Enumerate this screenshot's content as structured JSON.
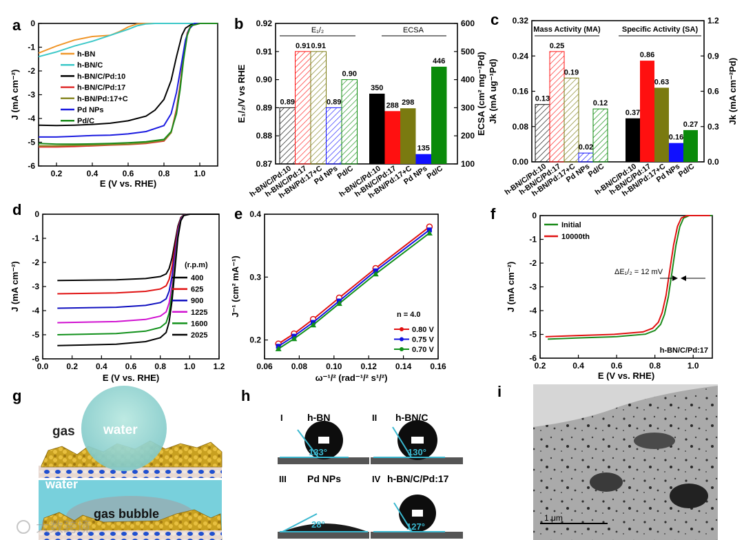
{
  "panel_labels": {
    "a": "a",
    "b": "b",
    "c": "c",
    "d": "d",
    "e": "e",
    "f": "f",
    "g": "g",
    "h": "h",
    "i": "i"
  },
  "chart_data": [
    {
      "id": "a",
      "type": "line",
      "xlabel": "E (V vs. RHE)",
      "ylabel": "J (mA cm⁻²)",
      "xlim": [
        0.1,
        1.1
      ],
      "ylim": [
        -6,
        0
      ],
      "xticks": [
        "0.2",
        "0.4",
        "0.6",
        "0.8",
        "1.0"
      ],
      "yticks": [
        "0",
        "-1",
        "-2",
        "-3",
        "-4",
        "-5",
        "-6"
      ],
      "series": [
        {
          "name": "h-BN",
          "color": "#f0962a",
          "x": [
            0.1,
            0.2,
            0.3,
            0.4,
            0.5,
            0.55,
            0.6,
            0.65,
            0.7,
            0.8,
            1.1
          ],
          "y": [
            -1.25,
            -0.95,
            -0.7,
            -0.55,
            -0.5,
            -0.35,
            -0.15,
            -0.02,
            0,
            0,
            0
          ]
        },
        {
          "name": "h-BN/C",
          "color": "#3cc8c8",
          "x": [
            0.1,
            0.2,
            0.3,
            0.4,
            0.5,
            0.6,
            0.65,
            0.7,
            0.75,
            0.8,
            1.1
          ],
          "y": [
            -1.4,
            -1.2,
            -0.95,
            -0.75,
            -0.5,
            -0.25,
            -0.1,
            -0.02,
            0,
            0,
            0
          ]
        },
        {
          "name": "h-BN/C/Pd:10",
          "color": "#000000",
          "x": [
            0.1,
            0.2,
            0.3,
            0.4,
            0.5,
            0.6,
            0.7,
            0.75,
            0.8,
            0.84,
            0.87,
            0.9,
            0.92,
            0.95,
            1.0,
            1.1
          ],
          "y": [
            -4.28,
            -4.3,
            -4.28,
            -4.25,
            -4.2,
            -4.1,
            -3.9,
            -3.65,
            -3.2,
            -2.4,
            -1.4,
            -0.5,
            -0.2,
            -0.05,
            0,
            0
          ]
        },
        {
          "name": "h-BN/C/Pd:17",
          "color": "#e03030",
          "x": [
            0.1,
            0.2,
            0.3,
            0.4,
            0.5,
            0.6,
            0.7,
            0.8,
            0.84,
            0.87,
            0.89,
            0.91,
            0.93,
            0.95,
            1.0,
            1.1
          ],
          "y": [
            -5.2,
            -5.2,
            -5.18,
            -5.15,
            -5.12,
            -5.1,
            -5.05,
            -4.95,
            -4.6,
            -3.6,
            -2.6,
            -1.3,
            -0.4,
            -0.1,
            0,
            0
          ]
        },
        {
          "name": "h-BN/Pd:17+C",
          "color": "#8a8a28",
          "x": [
            0.1,
            0.2,
            0.3,
            0.4,
            0.5,
            0.6,
            0.7,
            0.8,
            0.84,
            0.87,
            0.89,
            0.91,
            0.93,
            0.95,
            1.0,
            1.1
          ],
          "y": [
            -5.15,
            -5.15,
            -5.13,
            -5.12,
            -5.1,
            -5.08,
            -5.02,
            -4.92,
            -4.6,
            -3.7,
            -2.7,
            -1.4,
            -0.5,
            -0.1,
            0,
            0
          ]
        },
        {
          "name": "Pd NPs",
          "color": "#1a1ae0",
          "x": [
            0.1,
            0.2,
            0.3,
            0.4,
            0.5,
            0.6,
            0.7,
            0.8,
            0.84,
            0.87,
            0.9,
            0.92,
            0.94,
            0.97,
            1.1
          ],
          "y": [
            -4.78,
            -4.78,
            -4.75,
            -4.72,
            -4.7,
            -4.65,
            -4.55,
            -4.3,
            -3.8,
            -2.9,
            -1.6,
            -0.7,
            -0.25,
            0,
            0
          ]
        },
        {
          "name": "Pd/C",
          "color": "#1a8a1a",
          "x": [
            0.1,
            0.2,
            0.3,
            0.4,
            0.5,
            0.6,
            0.7,
            0.8,
            0.84,
            0.87,
            0.89,
            0.91,
            0.93,
            0.95,
            1.0,
            1.1
          ],
          "y": [
            -5.05,
            -5.08,
            -5.08,
            -5.07,
            -5.05,
            -5.02,
            -4.98,
            -4.88,
            -4.55,
            -3.8,
            -2.8,
            -1.5,
            -0.5,
            -0.1,
            0,
            0
          ]
        }
      ]
    },
    {
      "id": "b",
      "type": "bar",
      "ylabel_left": "E₁/₂/V vs RHE",
      "ylabel_right": "ECSA (cm² mg⁻¹Pd)",
      "ylim_left": [
        0.87,
        0.92
      ],
      "yticks_left": [
        "0.87",
        "0.88",
        "0.89",
        "0.90",
        "0.91",
        "0.92"
      ],
      "ylim_right": [
        100,
        600
      ],
      "yticks_right": [
        "100",
        "200",
        "300",
        "400",
        "500",
        "600"
      ],
      "header_left": "E₁/₂",
      "header_right": "ECSA",
      "categories": [
        "h-BN/C/Pd:10",
        "h-BN/C/Pd:17",
        "h-BN/Pd:17+C",
        "Pd NPs",
        "Pd/C"
      ],
      "colors": [
        "#000000",
        "#ff1010",
        "#7a7a10",
        "#1010ff",
        "#0a8a0a"
      ],
      "e_half": [
        0.89,
        0.91,
        0.91,
        0.89,
        0.9
      ],
      "e_half_labels": [
        "0.89",
        "0.91",
        "0.91",
        "0.89",
        "0.90"
      ],
      "ecsa": [
        350,
        288,
        298,
        135,
        446
      ],
      "ecsa_labels": [
        "350",
        "288",
        "298",
        "135",
        "446"
      ]
    },
    {
      "id": "c",
      "type": "bar",
      "ylabel_left": "Jk (mA ug⁻¹Pd)",
      "ylabel_right": "Jk (mA cm⁻²Pd)",
      "ylim_left": [
        0,
        0.32
      ],
      "yticks_left": [
        "0.00",
        "0.08",
        "0.16",
        "0.24",
        "0.32"
      ],
      "ylim_right": [
        0,
        1.2
      ],
      "yticks_right": [
        "0.0",
        "0.3",
        "0.6",
        "0.9",
        "1.2"
      ],
      "header_left": "Mass Activity (MA)",
      "header_right": "Specific Activity (SA)",
      "categories": [
        "h-BN/C/Pd:10",
        "h-BN/C/Pd:17",
        "h-BN/Pd:17+C",
        "Pd NPs",
        "Pd/C"
      ],
      "colors": [
        "#000000",
        "#ff1010",
        "#7a7a10",
        "#1010ff",
        "#0a8a0a"
      ],
      "ma": [
        0.13,
        0.25,
        0.19,
        0.02,
        0.12
      ],
      "ma_labels": [
        "0.13",
        "0.25",
        "0.19",
        "0.02",
        "0.12"
      ],
      "sa": [
        0.37,
        0.86,
        0.63,
        0.16,
        0.27
      ],
      "sa_labels": [
        "0.37",
        "0.86",
        "0.63",
        "0.16",
        "0.27"
      ]
    },
    {
      "id": "d",
      "type": "line",
      "xlabel": "E (V vs. RHE)",
      "ylabel": "J (mA cm⁻²)",
      "xlim": [
        0,
        1.2
      ],
      "ylim": [
        -6,
        0
      ],
      "xticks": [
        "0.0",
        "0.2",
        "0.4",
        "0.6",
        "0.8",
        "1.0",
        "1.2"
      ],
      "yticks": [
        "0",
        "-1",
        "-2",
        "-3",
        "-4",
        "-5",
        "-6"
      ],
      "legend_title": "(r.p.m)",
      "series": [
        {
          "name": "400",
          "color": "#000000",
          "plateau": -2.75
        },
        {
          "name": "625",
          "color": "#e01010",
          "plateau": -3.3
        },
        {
          "name": "900",
          "color": "#1010c0",
          "plateau": -3.9
        },
        {
          "name": "1225",
          "color": "#d010d0",
          "plateau": -4.5
        },
        {
          "name": "1600",
          "color": "#10901a",
          "plateau": -5.0
        },
        {
          "name": "2025",
          "color": "#000000",
          "plateau": -5.45
        }
      ]
    },
    {
      "id": "e",
      "type": "scatter",
      "xlabel": "ω⁻¹/² (rad⁻¹/² s¹/²)",
      "ylabel": "J⁻¹ (cm² mA⁻¹)",
      "xlim": [
        0.06,
        0.16
      ],
      "ylim": [
        0.17,
        0.4
      ],
      "xticks": [
        "0.06",
        "0.08",
        "0.10",
        "0.12",
        "0.14",
        "0.16"
      ],
      "yticks": [
        "0.2",
        "0.3",
        "0.4"
      ],
      "annotation": "n = 4.0",
      "x": [
        0.068,
        0.077,
        0.088,
        0.103,
        0.124,
        0.155
      ],
      "series": [
        {
          "name": "0.80 V",
          "color": "#e01010",
          "y": [
            0.194,
            0.21,
            0.233,
            0.267,
            0.314,
            0.38
          ]
        },
        {
          "name": "0.75 V",
          "color": "#1010e0",
          "y": [
            0.19,
            0.206,
            0.228,
            0.262,
            0.31,
            0.375
          ]
        },
        {
          "name": "0.70 V",
          "color": "#10901a",
          "y": [
            0.186,
            0.202,
            0.224,
            0.258,
            0.305,
            0.37
          ]
        }
      ]
    },
    {
      "id": "f",
      "type": "line",
      "xlabel": "E (V vs. RHE)",
      "ylabel": "J (mA cm⁻²)",
      "xlim": [
        0.2,
        1.1
      ],
      "ylim": [
        -6,
        0
      ],
      "xticks": [
        "0.2",
        "0.4",
        "0.6",
        "0.8",
        "1.0"
      ],
      "yticks": [
        "0",
        "-1",
        "-2",
        "-3",
        "-4",
        "-5",
        "-6"
      ],
      "annotation": "ΔE₁/₂ = 12 mV",
      "sample": "h-BN/C/Pd:17",
      "series": [
        {
          "name": "Initial",
          "color": "#1a8a1a",
          "shift": 0.0,
          "plateau": -5.2
        },
        {
          "name": "10000th",
          "color": "#e01010",
          "shift": -0.012,
          "plateau": -5.1
        }
      ]
    }
  ],
  "panel_g": {
    "gas": "gas",
    "water_top": "water",
    "water_bottom": "water",
    "bubble": "gas bubble"
  },
  "panel_h": {
    "items": [
      {
        "numeral": "I",
        "name": "h-BN",
        "angle": "133°"
      },
      {
        "numeral": "II",
        "name": "h-BN/C",
        "angle": "130°"
      },
      {
        "numeral": "III",
        "name": "Pd NPs",
        "angle": "28°"
      },
      {
        "numeral": "IV",
        "name": "h-BN/C/Pd:17",
        "angle": "127°"
      }
    ]
  },
  "panel_i": {
    "scale_bar": "1 μm"
  },
  "watermark": "大数跨境"
}
